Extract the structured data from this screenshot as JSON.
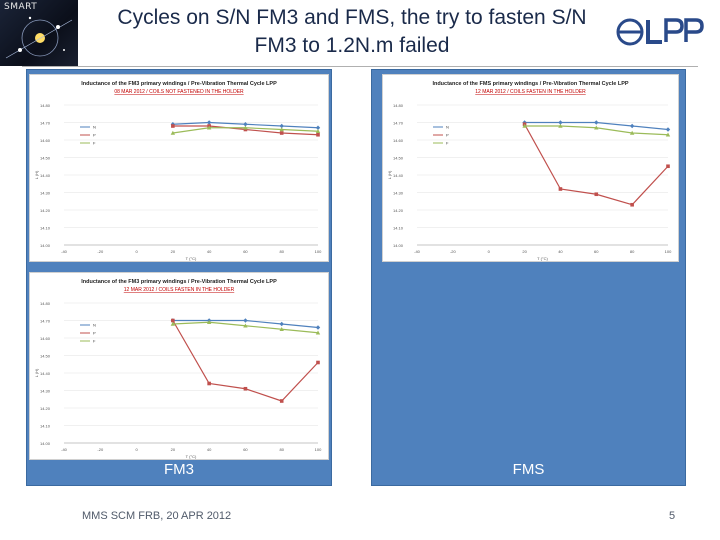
{
  "logo": {
    "text": "SMART"
  },
  "title": {
    "line1": "Cycles on S/N FM3 and FMS, the try to fasten S/N",
    "line2": "FM3 to 1.2N.m failed"
  },
  "panels": [
    {
      "label": "FM3"
    },
    {
      "label": "FMS"
    }
  ],
  "footer": {
    "left": "MMS SCM FRB, 20 APR 2012",
    "page": "5"
  },
  "colors": {
    "panel": "#4f81bd",
    "series_n": "#4f81bd",
    "series_p": "#c0504d",
    "series_f": "#9bbb59"
  },
  "chart_data": [
    {
      "type": "line",
      "title": "Inductance of the FM3 primary windings / Pre-Vibration Thermal Cycle LPP",
      "subtitle": "08 MAR 2012 / COILS NOT FASTENED IN THE HOLDER",
      "x": [
        -20,
        0,
        20,
        40,
        60,
        80,
        100
      ],
      "xlim": [
        -40,
        100
      ],
      "ylim": [
        14.0,
        14.8
      ],
      "yticks": [
        14.0,
        14.1,
        14.2,
        14.3,
        14.4,
        14.5,
        14.6,
        14.7,
        14.8
      ],
      "xticks": [
        -40,
        -20,
        0,
        20,
        40,
        60,
        80,
        100
      ],
      "xlabel": "T (°C)",
      "ylabel": "L (H)",
      "series": [
        {
          "name": "N",
          "values": [
            null,
            null,
            14.69,
            14.7,
            14.69,
            14.68,
            14.67
          ]
        },
        {
          "name": "P",
          "values": [
            null,
            null,
            14.68,
            14.68,
            14.66,
            14.64,
            14.63
          ]
        },
        {
          "name": "F",
          "values": [
            null,
            null,
            14.64,
            14.67,
            14.67,
            14.66,
            14.65
          ]
        }
      ]
    },
    {
      "type": "line",
      "title": "Inductance of the FMS primary windings / Pre-Vibration Thermal Cycle LPP",
      "subtitle": "12 MAR 2012 / COILS FASTEN IN THE HOLDER",
      "x": [
        -20,
        0,
        20,
        40,
        60,
        80,
        100
      ],
      "xlim": [
        -40,
        100
      ],
      "ylim": [
        14.0,
        14.8
      ],
      "yticks": [
        14.0,
        14.1,
        14.2,
        14.3,
        14.4,
        14.5,
        14.6,
        14.7,
        14.8
      ],
      "xticks": [
        -40,
        -20,
        0,
        20,
        40,
        60,
        80,
        100
      ],
      "xlabel": "T (°C)",
      "ylabel": "L (H)",
      "series": [
        {
          "name": "N",
          "values": [
            null,
            null,
            14.7,
            14.7,
            14.7,
            14.68,
            14.66
          ]
        },
        {
          "name": "P",
          "values": [
            null,
            null,
            14.69,
            14.32,
            14.29,
            14.23,
            14.45
          ]
        },
        {
          "name": "F",
          "values": [
            null,
            null,
            14.68,
            14.68,
            14.67,
            14.64,
            14.63
          ]
        }
      ]
    },
    {
      "type": "line",
      "title": "Inductance of the FM3 primary windings / Pre-Vibration Thermal Cycle LPP",
      "subtitle": "12 MAR 2012 / COILS FASTEN IN THE HOLDER",
      "x": [
        -20,
        0,
        20,
        40,
        60,
        80,
        100
      ],
      "xlim": [
        -40,
        100
      ],
      "ylim": [
        14.0,
        14.8
      ],
      "yticks": [
        14.0,
        14.1,
        14.2,
        14.3,
        14.4,
        14.5,
        14.6,
        14.7,
        14.8
      ],
      "xticks": [
        -40,
        -20,
        0,
        20,
        40,
        60,
        80,
        100
      ],
      "xlabel": "T (°C)",
      "ylabel": "L (H)",
      "series": [
        {
          "name": "N",
          "values": [
            null,
            null,
            14.7,
            14.7,
            14.7,
            14.68,
            14.66
          ]
        },
        {
          "name": "P",
          "values": [
            null,
            null,
            14.7,
            14.34,
            14.31,
            14.24,
            14.46
          ]
        },
        {
          "name": "F",
          "values": [
            null,
            null,
            14.68,
            14.69,
            14.67,
            14.65,
            14.63
          ]
        }
      ]
    }
  ]
}
